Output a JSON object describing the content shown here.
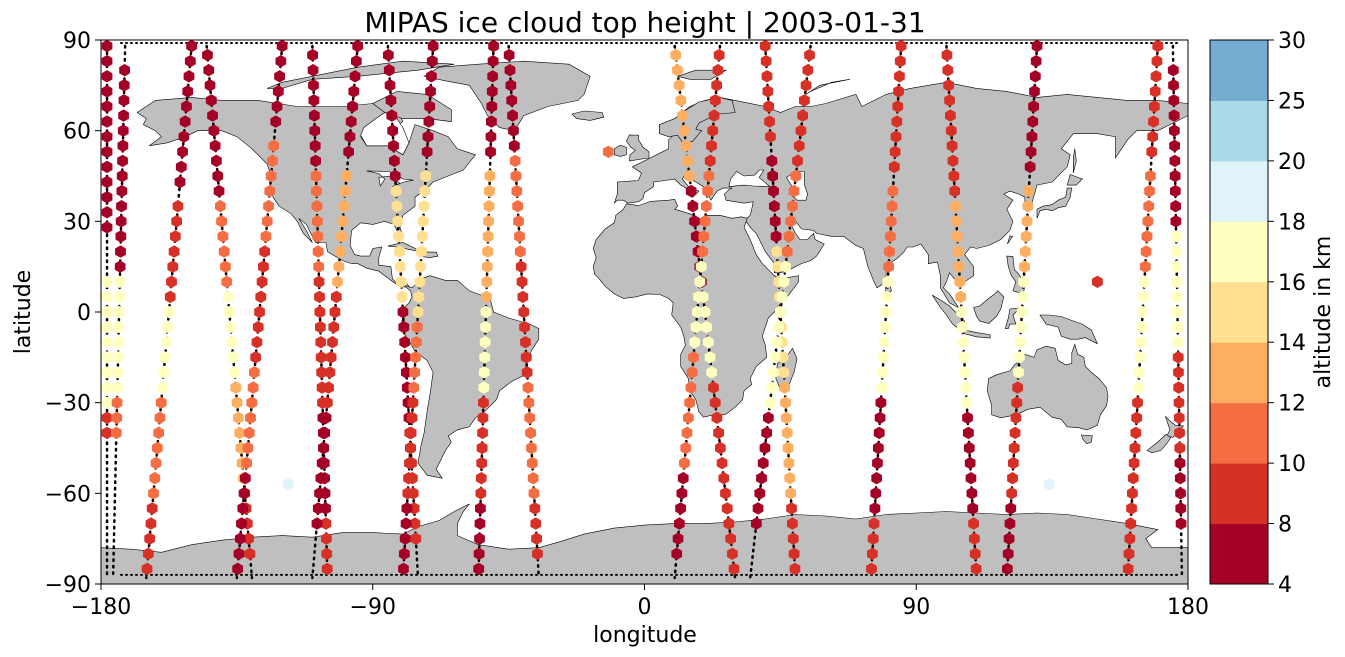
{
  "chart_data": {
    "type": "scatter",
    "title": "MIPAS ice cloud top height | 2003-01-31",
    "xlabel": "longitude",
    "ylabel": "latitude",
    "xlim": [
      -180,
      180
    ],
    "ylim": [
      -90,
      90
    ],
    "x_ticks": [
      "−180",
      "−90",
      "0",
      "90",
      "180"
    ],
    "y_ticks": [
      "90",
      "60",
      "30",
      "0",
      "−30",
      "−60",
      "−90"
    ],
    "colorbar": {
      "label": "altitude in km",
      "bounds": [
        4,
        8,
        10,
        12,
        14,
        16,
        18,
        20,
        25,
        30
      ],
      "tick_labels": [
        "4",
        "8",
        "10",
        "12",
        "14",
        "16",
        "18",
        "20",
        "25",
        "30"
      ],
      "colors": [
        "#a50026",
        "#d73027",
        "#f46d43",
        "#fdae61",
        "#fee090",
        "#ffffbf",
        "#e0f3f8",
        "#abd9e9",
        "#74add1",
        "#4575b4",
        "#313695"
      ]
    },
    "land_color": "#bfbfbf",
    "grid": false,
    "tracks": [
      {
        "lon_north": -178,
        "lon_south": -178,
        "segments": [
          [
            88,
            25,
            6
          ],
          [
            10,
            -35,
            16
          ],
          [
            -35,
            -40,
            9
          ]
        ]
      },
      {
        "lon_north": -172,
        "lon_south": -176,
        "segments": [
          [
            80,
            15,
            6
          ],
          [
            10,
            -25,
            16
          ],
          [
            -30,
            -40,
            10
          ]
        ]
      },
      {
        "lon_north": -150,
        "lon_south": -165,
        "segments": [
          [
            88,
            40,
            6
          ],
          [
            35,
            5,
            8
          ],
          [
            0,
            -25,
            16
          ],
          [
            -30,
            -60,
            10
          ],
          [
            -65,
            -85,
            8
          ]
        ]
      },
      {
        "lon_north": -145,
        "lon_south": -130,
        "segments": [
          [
            85,
            40,
            7
          ],
          [
            35,
            10,
            11
          ],
          [
            5,
            -20,
            16
          ],
          [
            -25,
            -55,
            12
          ],
          [
            -60,
            -80,
            9
          ]
        ]
      },
      {
        "lon_north": -120,
        "lon_south": -135,
        "segments": [
          [
            88,
            60,
            7
          ],
          [
            55,
            25,
            11
          ],
          [
            20,
            -15,
            8
          ],
          [
            -20,
            -50,
            10
          ],
          [
            -55,
            -85,
            6
          ]
        ]
      },
      {
        "lon_north": -110,
        "lon_south": -105,
        "segments": [
          [
            85,
            50,
            6
          ],
          [
            45,
            15,
            11
          ],
          [
            10,
            -30,
            9
          ],
          [
            -35,
            -65,
            7
          ],
          [
            -70,
            -85,
            9
          ]
        ]
      },
      {
        "lon_north": -95,
        "lon_south": -110,
        "segments": [
          [
            88,
            50,
            7
          ],
          [
            45,
            10,
            12
          ],
          [
            5,
            -30,
            9
          ],
          [
            -35,
            -70,
            7
          ]
        ]
      },
      {
        "lon_north": -85,
        "lon_south": -75,
        "segments": [
          [
            85,
            45,
            6
          ],
          [
            40,
            5,
            15
          ],
          [
            0,
            -35,
            6
          ],
          [
            -40,
            -75,
            9
          ]
        ]
      },
      {
        "lon_north": -70,
        "lon_south": -80,
        "segments": [
          [
            88,
            50,
            7
          ],
          [
            45,
            0,
            15
          ],
          [
            -5,
            -25,
            11
          ],
          [
            -30,
            -60,
            8
          ],
          [
            -65,
            -85,
            6
          ]
        ]
      },
      {
        "lon_north": -50,
        "lon_south": -55,
        "segments": [
          [
            88,
            50,
            6
          ],
          [
            45,
            5,
            12
          ],
          [
            0,
            -25,
            16
          ],
          [
            -30,
            -60,
            9
          ],
          [
            -65,
            -85,
            6
          ]
        ]
      },
      {
        "lon_north": -45,
        "lon_south": -35,
        "segments": [
          [
            85,
            55,
            7
          ],
          [
            50,
            20,
            11
          ],
          [
            15,
            -20,
            9
          ],
          [
            -25,
            -60,
            11
          ],
          [
            -65,
            -80,
            8
          ]
        ]
      },
      {
        "lon_north": 10,
        "lon_south": 30,
        "segments": [
          [
            85,
            45,
            12
          ],
          [
            40,
            10,
            6
          ],
          [
            5,
            -20,
            16
          ],
          [
            -25,
            -60,
            9
          ],
          [
            -65,
            -85,
            8
          ]
        ]
      },
      {
        "lon_north": 25,
        "lon_south": 10,
        "segments": [
          [
            85,
            50,
            9
          ],
          [
            45,
            20,
            11
          ],
          [
            15,
            -10,
            16
          ],
          [
            -15,
            -50,
            10
          ],
          [
            -55,
            -80,
            6
          ]
        ]
      },
      {
        "lon_north": 40,
        "lon_south": 50,
        "segments": [
          [
            88,
            55,
            9
          ],
          [
            50,
            25,
            6
          ],
          [
            20,
            -20,
            15
          ],
          [
            -25,
            -60,
            12
          ],
          [
            -65,
            -85,
            9
          ]
        ]
      },
      {
        "lon_north": 55,
        "lon_south": 35,
        "segments": [
          [
            85,
            50,
            8
          ],
          [
            45,
            20,
            11
          ],
          [
            15,
            -30,
            16
          ],
          [
            -35,
            -70,
            7
          ]
        ]
      },
      {
        "lon_north": 85,
        "lon_south": 75,
        "segments": [
          [
            88,
            45,
            9
          ],
          [
            40,
            15,
            11
          ],
          [
            10,
            -25,
            16
          ],
          [
            -30,
            -65,
            7
          ],
          [
            -70,
            -85,
            9
          ]
        ]
      },
      {
        "lon_north": 100,
        "lon_south": 110,
        "segments": [
          [
            85,
            40,
            8
          ],
          [
            35,
            5,
            12
          ],
          [
            0,
            -30,
            16
          ],
          [
            -35,
            -65,
            7
          ],
          [
            -70,
            -85,
            9
          ]
        ]
      },
      {
        "lon_north": 130,
        "lon_south": 120,
        "segments": [
          [
            88,
            45,
            6
          ],
          [
            40,
            15,
            12
          ],
          [
            10,
            -20,
            16
          ],
          [
            -25,
            -60,
            8
          ],
          [
            -65,
            -85,
            6
          ]
        ]
      },
      {
        "lon_north": 170,
        "lon_south": 160,
        "segments": [
          [
            88,
            50,
            9
          ],
          [
            45,
            15,
            11
          ],
          [
            10,
            -25,
            16
          ],
          [
            -30,
            -60,
            9
          ],
          [
            -65,
            -85,
            8
          ]
        ]
      },
      {
        "lon_north": 175,
        "lon_south": 178,
        "segments": [
          [
            80,
            30,
            6
          ],
          [
            25,
            -10,
            16
          ],
          [
            -15,
            -45,
            9
          ],
          [
            -50,
            -70,
            7
          ]
        ]
      }
    ],
    "isolated_points": [
      {
        "lon": -118,
        "lat": -57,
        "alt": 19
      },
      {
        "lon": 134,
        "lat": -57,
        "alt": 19
      },
      {
        "lon": -12,
        "lat": 53,
        "alt": 11
      },
      {
        "lon": 150,
        "lat": 10,
        "alt": 9
      }
    ]
  }
}
